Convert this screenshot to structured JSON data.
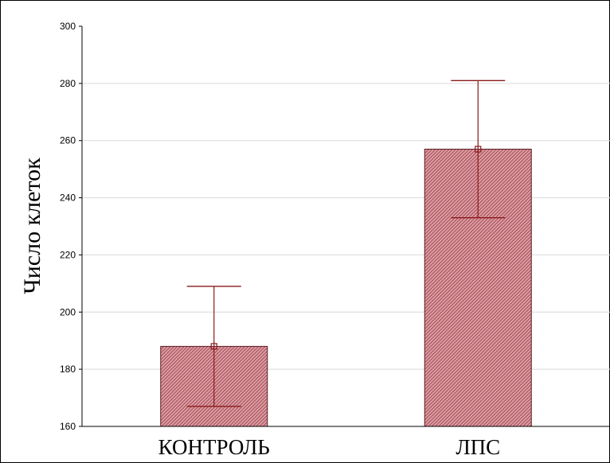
{
  "chart_data": {
    "type": "bar",
    "title": "",
    "xlabel": "",
    "ylabel": "Число клеток",
    "categories": [
      "КОНТРОЛЬ",
      "ЛПС"
    ],
    "values": [
      188,
      257
    ],
    "error_low": [
      167,
      233
    ],
    "error_high": [
      209,
      281
    ],
    "ylim": [
      160,
      300
    ],
    "yticks": [
      "160",
      "180",
      "200",
      "220",
      "240",
      "260",
      "280",
      "300"
    ],
    "grid": true,
    "bar_color": "#a0434c",
    "bar_pattern": "hatched",
    "error_bar_color": "#8b1a1a"
  }
}
